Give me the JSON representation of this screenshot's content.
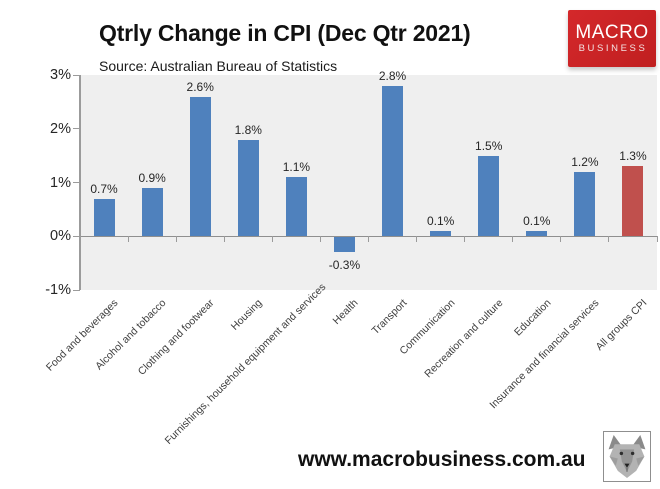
{
  "header": {
    "title": "Qtrly Change in CPI (Dec Qtr 2021)",
    "source": "Source: Australian Bureau of Statistics",
    "brand": {
      "line1": "MACRO",
      "line2": "BUSINESS",
      "bg_color": "#d4282b",
      "text_color": "#ffffff"
    }
  },
  "chart_data": {
    "type": "bar",
    "title": "Qtrly Change in CPI (Dec Qtr 2021)",
    "source_note": "Source: Australian Bureau of Statistics",
    "categories": [
      "Food and beverages",
      "Alcohol and tobacco",
      "Clothing and footwear",
      "Housing",
      "Furnishings, household equipment and services",
      "Health",
      "Transport",
      "Communication",
      "Recreation and culture",
      "Education",
      "Insurance and financial services",
      "All groups CPI"
    ],
    "values": [
      0.7,
      0.9,
      2.6,
      1.8,
      1.1,
      -0.3,
      2.8,
      0.1,
      1.5,
      0.1,
      1.2,
      1.3
    ],
    "data_labels": [
      "0.7%",
      "0.9%",
      "2.6%",
      "1.8%",
      "1.1%",
      "-0.3%",
      "2.8%",
      "0.1%",
      "1.5%",
      "0.1%",
      "1.2%",
      "1.3%"
    ],
    "highlight_index": 11,
    "ylim": [
      -1,
      3
    ],
    "ytick_labels": [
      "3%",
      "2%",
      "1%",
      "0%",
      "-1%"
    ],
    "xlabel": "",
    "ylabel": "",
    "grid": false,
    "legend": "none",
    "colors": {
      "bar": "#4f81bd",
      "highlight_bar": "#c0504d",
      "plot_bg": "#efefef",
      "axis": "#9b9b9b",
      "zero_line": "#8f8f8f"
    }
  },
  "footer": {
    "website": "www.macrobusiness.com.au",
    "logo_icon": "wolf-logo"
  }
}
